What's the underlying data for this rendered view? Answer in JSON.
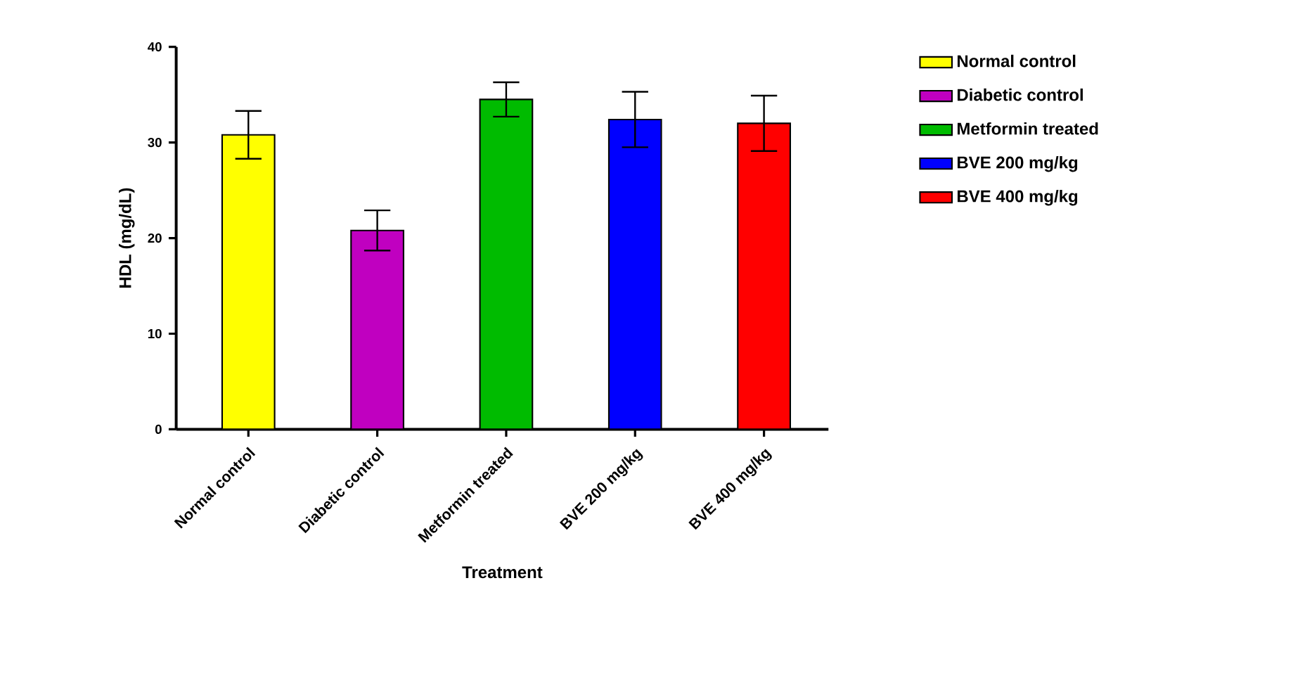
{
  "chart_data": {
    "type": "bar",
    "xlabel": "Treatment",
    "ylabel": "HDL (mg/dL)",
    "categories": [
      "Normal control",
      "Diabetic control",
      "Metformin treated",
      "BVE 200 mg/kg",
      "BVE 400 mg/kg"
    ],
    "series": [
      {
        "name": "Normal control",
        "color": "#ffff00",
        "values": [
          30.8,
          null,
          null,
          null,
          null
        ],
        "errors": [
          2.5,
          null,
          null,
          null,
          null
        ]
      },
      {
        "name": "Diabetic control",
        "color": "#c000c0",
        "values": [
          null,
          20.8,
          null,
          null,
          null
        ],
        "errors": [
          null,
          2.1,
          null,
          null,
          null
        ]
      },
      {
        "name": "Metformin treated",
        "color": "#00bb00",
        "values": [
          null,
          null,
          34.5,
          null,
          null
        ],
        "errors": [
          null,
          null,
          1.8,
          null,
          null
        ]
      },
      {
        "name": "BVE 200 mg/kg",
        "color": "#0000ff",
        "values": [
          null,
          null,
          null,
          32.4,
          null
        ],
        "errors": [
          null,
          null,
          null,
          2.9,
          null
        ]
      },
      {
        "name": "BVE 400 mg/kg",
        "color": "#ff0000",
        "values": [
          null,
          null,
          null,
          null,
          32.0
        ],
        "errors": [
          null,
          null,
          null,
          null,
          2.9
        ]
      }
    ],
    "ylim": [
      0,
      40
    ],
    "yticks": [
      0,
      10,
      20,
      30,
      40
    ],
    "grid": false,
    "legend": "right"
  }
}
